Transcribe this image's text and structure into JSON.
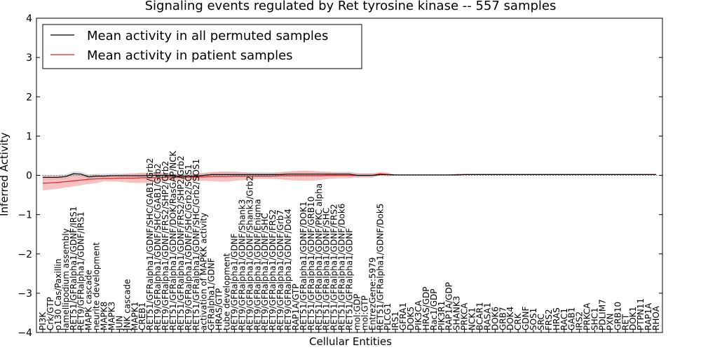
{
  "chart_data": {
    "type": "line",
    "title": "Signaling events regulated by Ret tyrosine kinase -- 557 samples",
    "xlabel": "Cellular Entities",
    "ylabel": "Inferred Activity",
    "ylim": [
      -4,
      4
    ],
    "yticks": [
      -4,
      -3,
      -2,
      -1,
      0,
      1,
      2,
      3,
      4
    ],
    "grid": false,
    "legend_position": "top-left",
    "colors": {
      "permuted": "#000000",
      "patient": "#d62728",
      "patient_band": "#f4a0a0",
      "permuted_band": "#b4c0cc",
      "zero_line": "#888888"
    },
    "categories": [
      "PI3K",
      "Crk/GTP",
      "p130 Cas/Paxillin",
      "lamellipodium assembly",
      "RET51/GFRalpha1/GDNF/IRS1",
      "RET9/GFRalpha1/GDNF/IRS1",
      "MAPK cascade",
      "neurite development",
      "MAPK8",
      "MAPK3",
      "JUN",
      "JNK cascade",
      "MAPK1",
      "CREB1",
      "RET51/GFRalpha1/GDNF/SHC/GAB1/Grb2",
      "RET9/GFRalpha1/GDNF/SHC/GAB1/Grb2",
      "RET9/GFRalpha1/GDNF/FRS2/SHP2/Grb2",
      "RET51/GFRalpha1/GDNF/DOK/RasGAP/NCK",
      "RET51/GFRalpha1/GDNF/FRS2/SHP2/Grb2",
      "RET9/GFRalpha1/GDNF/SHC/Grb2/SOS1",
      "RET51/GFRalpha1/GDNF/SHC/Grb2/SOS1",
      "activation of MAPKK activity",
      "GFRalpha1/GDNF",
      "HRAS/GTP",
      "tube development",
      "RET9/GFRalpha1/GDNF",
      "RET9/GFRalpha1/GDNF/Shank3",
      "RET9/GFRalpha1/GDNF/Shank3/Grb2",
      "RET9/GFRalpha1/GDNF/Enigma",
      "RET9/GFRalpha1/GDNF/SHC",
      "RET9/GFRalpha1/GDNF/FRS2",
      "RET9/GFRalpha1/GDNF/Grb7",
      "RET9/GFRalpha1/GDNF/Dok4",
      "RAP1A/GTP",
      "RET51/GFRalpha1/GDNF/DOK1",
      "RET51/GFRalpha1/GDNF/GRB10",
      "RET51/GFRalpha1/GDNF/PKC alpha",
      "RET51/GFRalpha1/GDNF/SHC",
      "RET51/GFRalpha1/GDNF/FRS2",
      "RET51/GFRalpha1/GDNF/Dok6",
      "RET51/GFRalpha1/GDNF",
      "mol:GDP",
      "mol:GTP",
      "EntrezGene:5979",
      "RET51/GFRalpha1/GDNF/Dok5",
      "PLCG1",
      "IRS1",
      "GFRA1",
      "DOK5",
      "PIK3CA",
      "HRAS/GDP",
      "Rac1/GDP",
      "PIK3R1",
      "RAP1A/GDP",
      "SHANK3",
      "PRKCA",
      "NCK1",
      "BCAR1",
      "RASA1",
      "DOK6",
      "GRB7",
      "DOK4",
      "CRK",
      "GDNF",
      "SOS1",
      "SRC",
      "FRS2",
      "HRAS",
      "RAC1",
      "GAB1",
      "IRS2",
      "PRKCA",
      "SHC1",
      "PDLIM7",
      "PXN",
      "GRB10",
      "RET",
      "DOK1",
      "PTPN11",
      "RAP1A",
      "RHOA"
    ],
    "series": [
      {
        "name": "Mean activity in all permuted samples",
        "values": [
          -0.05,
          -0.05,
          -0.05,
          -0.03,
          0.04,
          0.03,
          -0.04,
          -0.02,
          -0.02,
          -0.01,
          -0.01,
          -0.01,
          -0.01,
          -0.01,
          0.0,
          0.0,
          0.0,
          -0.02,
          -0.02,
          -0.02,
          -0.02,
          0.0,
          0.02,
          0.02,
          0.02,
          0.02,
          0.02,
          0.02,
          0.02,
          0.02,
          0.02,
          0.02,
          0.03,
          0.03,
          0.03,
          0.03,
          0.03,
          0.03,
          0.03,
          0.03,
          0.03,
          0.0,
          0.0,
          0.0,
          0.02,
          0.02,
          0.01,
          0.01,
          0.01,
          0.01,
          0.01,
          0.01,
          0.01,
          0.01,
          0.01,
          0.02,
          0.02,
          0.02,
          0.02,
          0.02,
          0.02,
          0.02,
          0.02,
          0.02,
          0.02,
          0.02,
          0.02,
          0.02,
          0.02,
          0.02,
          0.02,
          0.02,
          0.02,
          0.02,
          0.02,
          0.02,
          0.02,
          0.02,
          0.02,
          0.02,
          0.02
        ]
      },
      {
        "name": "Mean activity in patient samples",
        "values": [
          -0.2,
          -0.19,
          -0.18,
          -0.16,
          -0.14,
          -0.12,
          -0.1,
          -0.09,
          -0.08,
          -0.08,
          -0.07,
          -0.07,
          -0.07,
          -0.06,
          -0.06,
          -0.06,
          -0.05,
          -0.05,
          -0.05,
          -0.05,
          -0.04,
          -0.04,
          -0.03,
          -0.03,
          -0.03,
          -0.02,
          -0.02,
          -0.02,
          -0.02,
          -0.02,
          -0.02,
          -0.01,
          -0.01,
          -0.01,
          -0.01,
          -0.01,
          -0.01,
          0.0,
          0.0,
          0.0,
          0.0,
          0.0,
          0.0,
          0.0,
          0.04,
          0.02,
          0.01,
          0.01,
          0.01,
          0.01,
          0.01,
          0.01,
          0.01,
          0.01,
          0.02,
          0.02,
          0.02,
          0.02,
          0.02,
          0.02,
          0.02,
          0.02,
          0.02,
          0.02,
          0.02,
          0.02,
          0.02,
          0.02,
          0.02,
          0.02,
          0.02,
          0.02,
          0.02,
          0.02,
          0.02,
          0.02,
          0.02,
          0.02,
          0.02,
          0.02,
          0.02
        ]
      }
    ]
  }
}
